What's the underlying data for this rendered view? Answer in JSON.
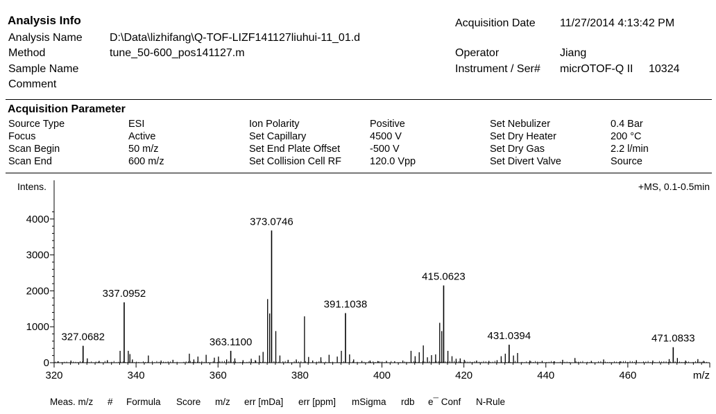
{
  "analysis_info": {
    "title": "Analysis Info",
    "rows": [
      {
        "label": "Analysis Name",
        "value": "D:\\Data\\lizhifang\\Q-TOF-LIZF141127liuhui-11_01.d"
      },
      {
        "label": "Method",
        "value": "tune_50-600_pos141127.m"
      },
      {
        "label": "Sample Name",
        "value": ""
      },
      {
        "label": "Comment",
        "value": ""
      }
    ],
    "right_rows": [
      {
        "label": "Acquisition Date",
        "value": "11/27/2014 4:13:42 PM"
      },
      {
        "label": "Operator",
        "value": "Jiang"
      },
      {
        "label": "Instrument / Ser#",
        "value": "micrOTOF-Q II",
        "serial": "10324"
      }
    ]
  },
  "acquisition_parameter": {
    "title": "Acquisition Parameter",
    "columns": [
      [
        {
          "label": "Source Type",
          "value": "ESI"
        },
        {
          "label": "Focus",
          "value": "Active"
        },
        {
          "label": "Scan Begin",
          "value": "50 m/z"
        },
        {
          "label": "Scan End",
          "value": "600 m/z"
        }
      ],
      [
        {
          "label": "Ion Polarity",
          "value": "Positive"
        },
        {
          "label": "Set Capillary",
          "value": "4500 V"
        },
        {
          "label": "Set End Plate Offset",
          "value": "-500 V"
        },
        {
          "label": "Set Collision Cell RF",
          "value": "120.0 Vpp"
        }
      ],
      [
        {
          "label": "Set Nebulizer",
          "value": "0.4 Bar"
        },
        {
          "label": "Set Dry Heater",
          "value": "200 °C"
        },
        {
          "label": "Set Dry Gas",
          "value": "2.2 l/min"
        },
        {
          "label": "Set Divert Valve",
          "value": "Source"
        }
      ]
    ]
  },
  "chart_data": {
    "type": "bar",
    "ylabel": "Intens.",
    "xlabel": "m/z",
    "trace_label": "+MS, 0.1-0.5min",
    "xlim": [
      320,
      480
    ],
    "ylim": [
      0,
      4300
    ],
    "xticks": [
      320,
      340,
      360,
      380,
      400,
      420,
      440,
      460
    ],
    "yticks": [
      0,
      1000,
      2000,
      3000,
      4000
    ],
    "labeled_peaks": [
      {
        "mz": 327.0682,
        "intensity": 470,
        "label": "327.0682"
      },
      {
        "mz": 337.0952,
        "intensity": 1680,
        "label": "337.0952"
      },
      {
        "mz": 363.11,
        "intensity": 330,
        "label": "363.1100"
      },
      {
        "mz": 373.0746,
        "intensity": 3680,
        "label": "373.0746"
      },
      {
        "mz": 391.1038,
        "intensity": 1380,
        "label": "391.1038"
      },
      {
        "mz": 415.0623,
        "intensity": 2150,
        "label": "415.0623"
      },
      {
        "mz": 431.0394,
        "intensity": 500,
        "label": "431.0394"
      },
      {
        "mz": 471.0833,
        "intensity": 430,
        "label": "471.0833"
      }
    ],
    "other_peaks": [
      {
        "mz": 321.0,
        "intensity": 40
      },
      {
        "mz": 324.1,
        "intensity": 60
      },
      {
        "mz": 328.1,
        "intensity": 120
      },
      {
        "mz": 331.0,
        "intensity": 50
      },
      {
        "mz": 333.0,
        "intensity": 70
      },
      {
        "mz": 336.1,
        "intensity": 330
      },
      {
        "mz": 338.1,
        "intensity": 330
      },
      {
        "mz": 338.5,
        "intensity": 240
      },
      {
        "mz": 339.1,
        "intensity": 90
      },
      {
        "mz": 343.0,
        "intensity": 200
      },
      {
        "mz": 346.1,
        "intensity": 60
      },
      {
        "mz": 349.0,
        "intensity": 80
      },
      {
        "mz": 353.0,
        "intensity": 250
      },
      {
        "mz": 354.1,
        "intensity": 90
      },
      {
        "mz": 355.1,
        "intensity": 170
      },
      {
        "mz": 357.1,
        "intensity": 220
      },
      {
        "mz": 359.1,
        "intensity": 140
      },
      {
        "mz": 360.1,
        "intensity": 170
      },
      {
        "mz": 362.1,
        "intensity": 90
      },
      {
        "mz": 364.1,
        "intensity": 120
      },
      {
        "mz": 366.1,
        "intensity": 70
      },
      {
        "mz": 368.1,
        "intensity": 110
      },
      {
        "mz": 369.1,
        "intensity": 70
      },
      {
        "mz": 370.1,
        "intensity": 200
      },
      {
        "mz": 371.0,
        "intensity": 300
      },
      {
        "mz": 372.1,
        "intensity": 1770
      },
      {
        "mz": 372.6,
        "intensity": 1370
      },
      {
        "mz": 374.1,
        "intensity": 880
      },
      {
        "mz": 375.1,
        "intensity": 200
      },
      {
        "mz": 377.1,
        "intensity": 80
      },
      {
        "mz": 379.1,
        "intensity": 90
      },
      {
        "mz": 381.1,
        "intensity": 1290
      },
      {
        "mz": 382.1,
        "intensity": 160
      },
      {
        "mz": 383.1,
        "intensity": 60
      },
      {
        "mz": 385.1,
        "intensity": 150
      },
      {
        "mz": 387.1,
        "intensity": 220
      },
      {
        "mz": 389.1,
        "intensity": 170
      },
      {
        "mz": 390.1,
        "intensity": 330
      },
      {
        "mz": 392.1,
        "intensity": 230
      },
      {
        "mz": 393.1,
        "intensity": 90
      },
      {
        "mz": 395.1,
        "intensity": 50
      },
      {
        "mz": 397.1,
        "intensity": 60
      },
      {
        "mz": 399.1,
        "intensity": 40
      },
      {
        "mz": 401.1,
        "intensity": 50
      },
      {
        "mz": 403.1,
        "intensity": 40
      },
      {
        "mz": 405.1,
        "intensity": 60
      },
      {
        "mz": 407.1,
        "intensity": 330
      },
      {
        "mz": 408.1,
        "intensity": 180
      },
      {
        "mz": 409.1,
        "intensity": 290
      },
      {
        "mz": 410.1,
        "intensity": 480
      },
      {
        "mz": 411.1,
        "intensity": 150
      },
      {
        "mz": 412.1,
        "intensity": 210
      },
      {
        "mz": 413.1,
        "intensity": 230
      },
      {
        "mz": 414.1,
        "intensity": 1110
      },
      {
        "mz": 414.6,
        "intensity": 880
      },
      {
        "mz": 416.1,
        "intensity": 330
      },
      {
        "mz": 417.1,
        "intensity": 180
      },
      {
        "mz": 418.1,
        "intensity": 110
      },
      {
        "mz": 419.1,
        "intensity": 120
      },
      {
        "mz": 420.1,
        "intensity": 80
      },
      {
        "mz": 423.1,
        "intensity": 60
      },
      {
        "mz": 426.1,
        "intensity": 50
      },
      {
        "mz": 428.1,
        "intensity": 70
      },
      {
        "mz": 429.1,
        "intensity": 180
      },
      {
        "mz": 430.1,
        "intensity": 250
      },
      {
        "mz": 432.1,
        "intensity": 200
      },
      {
        "mz": 433.1,
        "intensity": 270
      },
      {
        "mz": 436.1,
        "intensity": 60
      },
      {
        "mz": 439.1,
        "intensity": 50
      },
      {
        "mz": 442.1,
        "intensity": 40
      },
      {
        "mz": 444.1,
        "intensity": 80
      },
      {
        "mz": 447.1,
        "intensity": 130
      },
      {
        "mz": 451.1,
        "intensity": 50
      },
      {
        "mz": 454.1,
        "intensity": 90
      },
      {
        "mz": 458.1,
        "intensity": 40
      },
      {
        "mz": 462.1,
        "intensity": 70
      },
      {
        "mz": 466.1,
        "intensity": 60
      },
      {
        "mz": 470.1,
        "intensity": 100
      },
      {
        "mz": 472.1,
        "intensity": 130
      },
      {
        "mz": 474.1,
        "intensity": 60
      },
      {
        "mz": 477.1,
        "intensity": 100
      },
      {
        "mz": 478.5,
        "intensity": 50
      }
    ]
  },
  "results_table": {
    "columns": [
      "Meas. m/z",
      "#",
      "Formula",
      "Score",
      "m/z",
      "err [mDa]",
      "err [ppm]",
      "mSigma",
      "rdb",
      "e¯ Conf",
      "N-Rule"
    ]
  }
}
